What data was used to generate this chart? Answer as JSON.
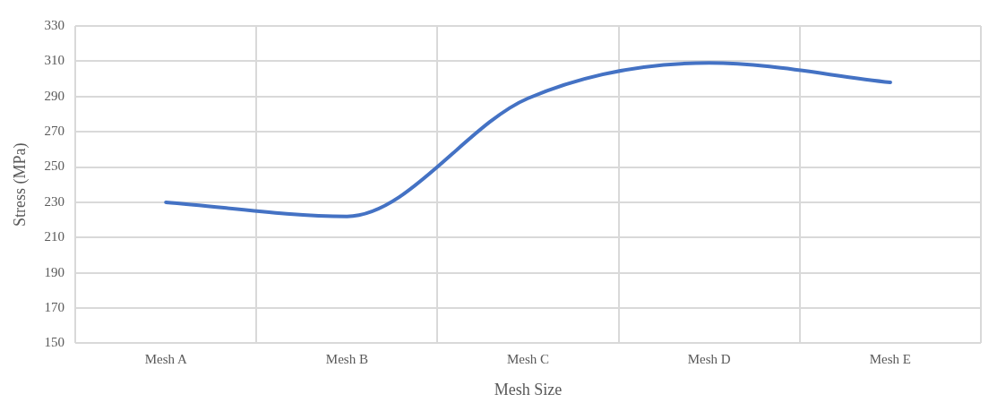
{
  "chart_data": {
    "type": "line",
    "xlabel": "Mesh Size",
    "ylabel": "Stress (MPa)",
    "categories": [
      "Mesh A",
      "Mesh B",
      "Mesh C",
      "Mesh D",
      "Mesh E"
    ],
    "series": [
      {
        "color": "#4472c4",
        "values": [
          230,
          222,
          289,
          309,
          298
        ]
      }
    ],
    "ylim": [
      150,
      330
    ],
    "yticks": [
      150,
      170,
      190,
      210,
      230,
      250,
      270,
      290,
      310,
      330
    ],
    "grid": true,
    "legend": false,
    "marker": "none",
    "line_style": "solid"
  }
}
